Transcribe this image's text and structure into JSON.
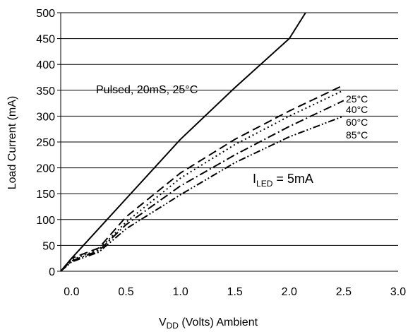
{
  "chart_data": {
    "type": "line",
    "xlabel": {
      "main": "V",
      "sub": "DD",
      "rest": " (Volts) Ambient"
    },
    "ylabel": "Load Current (mA)",
    "xlim": [
      -0.1,
      3.0
    ],
    "ylim": [
      0,
      500
    ],
    "xticks": [
      "0.0",
      "0.5",
      "1.0",
      "1.5",
      "2.0",
      "2.5",
      "3.0"
    ],
    "xtick_values": [
      0.0,
      0.5,
      1.0,
      1.5,
      2.0,
      2.5,
      3.0
    ],
    "yticks": [
      "0",
      "50",
      "100",
      "150",
      "200",
      "250",
      "300",
      "350",
      "400",
      "450",
      "500"
    ],
    "ytick_values": [
      0,
      50,
      100,
      150,
      200,
      250,
      300,
      350,
      400,
      450,
      500
    ],
    "grid": "horizontal",
    "series": [
      {
        "name": "Pulsed, 20mS, 25°C",
        "dash": "solid",
        "x": [
          -0.1,
          0.0,
          0.5,
          1.0,
          1.5,
          2.0,
          2.15
        ],
        "y": [
          0,
          25,
          140,
          255,
          355,
          450,
          500
        ]
      },
      {
        "name": "25°C",
        "dash": "dash",
        "x": [
          -0.1,
          0.0,
          0.25,
          0.5,
          1.0,
          1.5,
          2.0,
          2.5
        ],
        "y": [
          0,
          25,
          45,
          105,
          190,
          255,
          310,
          360
        ]
      },
      {
        "name": "40°C",
        "dash": "dot",
        "x": [
          -0.1,
          0.0,
          0.25,
          0.5,
          1.0,
          1.5,
          2.0,
          2.5
        ],
        "y": [
          0,
          22,
          42,
          95,
          180,
          245,
          300,
          350
        ]
      },
      {
        "name": "60°C",
        "dash": "dashdot",
        "x": [
          -0.1,
          0.0,
          0.25,
          0.5,
          1.0,
          1.5,
          2.0,
          2.5
        ],
        "y": [
          0,
          20,
          40,
          90,
          165,
          225,
          280,
          330
        ]
      },
      {
        "name": "85°C",
        "dash": "dashdotdot",
        "x": [
          -0.1,
          0.0,
          0.25,
          0.5,
          1.0,
          1.5,
          2.0,
          2.5
        ],
        "y": [
          0,
          18,
          37,
          82,
          148,
          210,
          260,
          300
        ]
      }
    ],
    "annotations": {
      "pulsed": "Pulsed, 20mS, 25°C",
      "temps": [
        "25°C",
        "40°C",
        "60°C",
        "85°C"
      ],
      "iled": {
        "main": "I",
        "sub": "LED",
        "rest": " = 5mA"
      }
    }
  }
}
